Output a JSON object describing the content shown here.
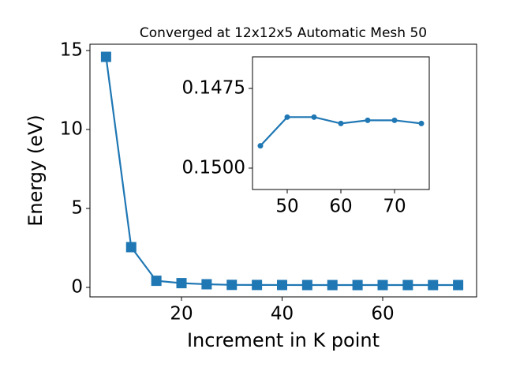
{
  "chart_data": [
    {
      "type": "line",
      "title": "Converged at 12x12x5 Automatic Mesh 50",
      "x_label": "Increment in K point",
      "y_label": "Energy (eV)",
      "x": [
        5,
        10,
        15,
        20,
        25,
        30,
        35,
        40,
        45,
        50,
        55,
        60,
        65,
        70,
        75
      ],
      "series": [
        {
          "color": "#1f77b4",
          "marker": "square",
          "values": [
            14.6,
            2.55,
            0.42,
            0.27,
            0.2,
            0.16,
            0.155,
            0.152,
            0.1493,
            0.1484,
            0.1484,
            0.1486,
            0.1485,
            0.1485,
            0.1486
          ]
        }
      ],
      "xlim": [
        1.8,
        78.67
      ],
      "ylim": [
        -0.6,
        15.4
      ],
      "xticks": [
        20,
        40,
        60
      ],
      "yticks": [
        0,
        5,
        10,
        15
      ]
    },
    {
      "type": "line",
      "x": [
        45,
        50,
        55,
        60,
        65,
        70,
        75
      ],
      "series": [
        {
          "color": "#1f77b4",
          "marker": "circle",
          "values": [
            0.1493,
            0.1484,
            0.1484,
            0.1486,
            0.1485,
            0.1485,
            0.1486
          ]
        }
      ],
      "xlim": [
        43.53,
        76.47
      ],
      "ylim": [
        0.15067,
        0.14651
      ],
      "xticks": [
        50,
        60,
        70
      ],
      "yticks": [
        0.1475,
        {
          "value": 0.15,
          "label": "0.1500"
        }
      ]
    }
  ]
}
